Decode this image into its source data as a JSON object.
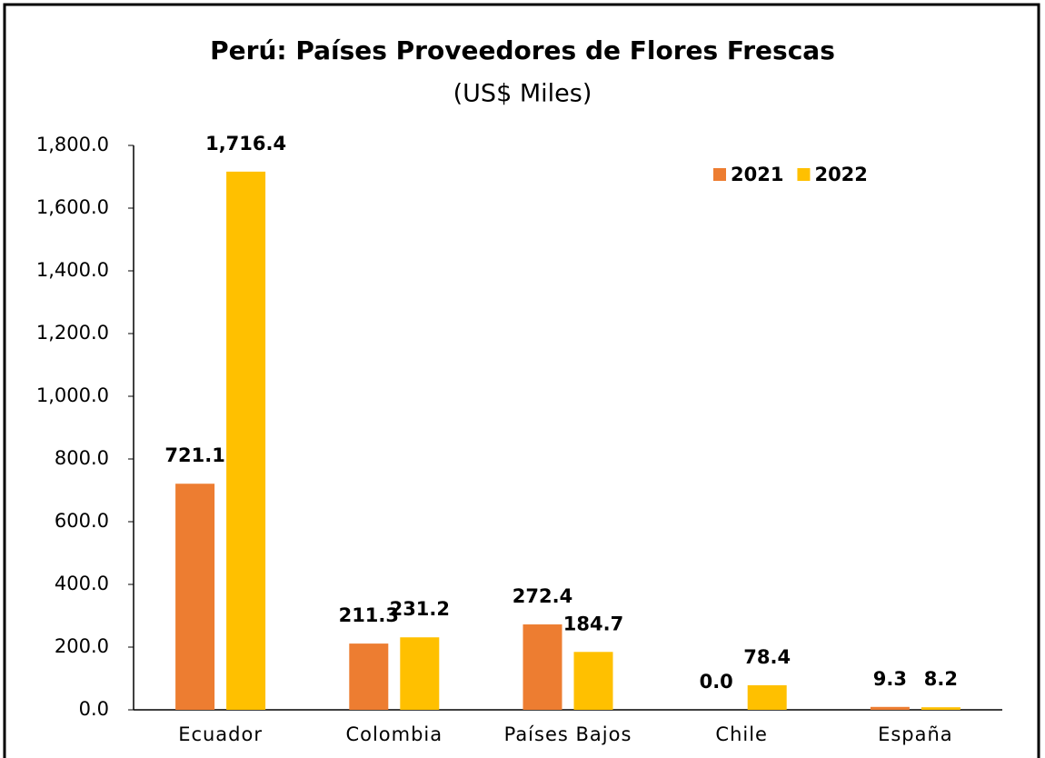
{
  "chart_data": {
    "type": "bar",
    "title": "Perú: Países Proveedores de Flores Frescas",
    "subtitle": "(US$ Miles)",
    "categories": [
      "Ecuador",
      "Colombia",
      "Países Bajos",
      "Chile",
      "España"
    ],
    "series": [
      {
        "name": "2021",
        "color": "#ed7d31",
        "values": [
          721.1,
          211.3,
          272.4,
          0,
          9.3
        ],
        "value_labels": [
          "721.1",
          "211.3",
          "272.4",
          "0.0",
          "9.3"
        ]
      },
      {
        "name": "2022",
        "color": "#ffc000",
        "values": [
          1716.4,
          231.2,
          184.7,
          78.4,
          8.2
        ],
        "value_labels": [
          "1,716.4",
          "231.2",
          "184.7",
          "78.4",
          "8.2"
        ]
      }
    ],
    "ylim": [
      0,
      1800
    ],
    "yticks": [
      {
        "value": 0,
        "label": "0.0"
      },
      {
        "value": 200,
        "label": "200.0"
      },
      {
        "value": 400,
        "label": "400.0"
      },
      {
        "value": 600,
        "label": "600.0"
      },
      {
        "value": 800,
        "label": "800.0"
      },
      {
        "value": 1000,
        "label": "1,000.0"
      },
      {
        "value": 1200,
        "label": "1,200.0"
      },
      {
        "value": 1400,
        "label": "1,400.0"
      },
      {
        "value": 1600,
        "label": "1,600.0"
      },
      {
        "value": 1800,
        "label": "1,800.0"
      }
    ],
    "grid": false,
    "legend": "top-right"
  }
}
